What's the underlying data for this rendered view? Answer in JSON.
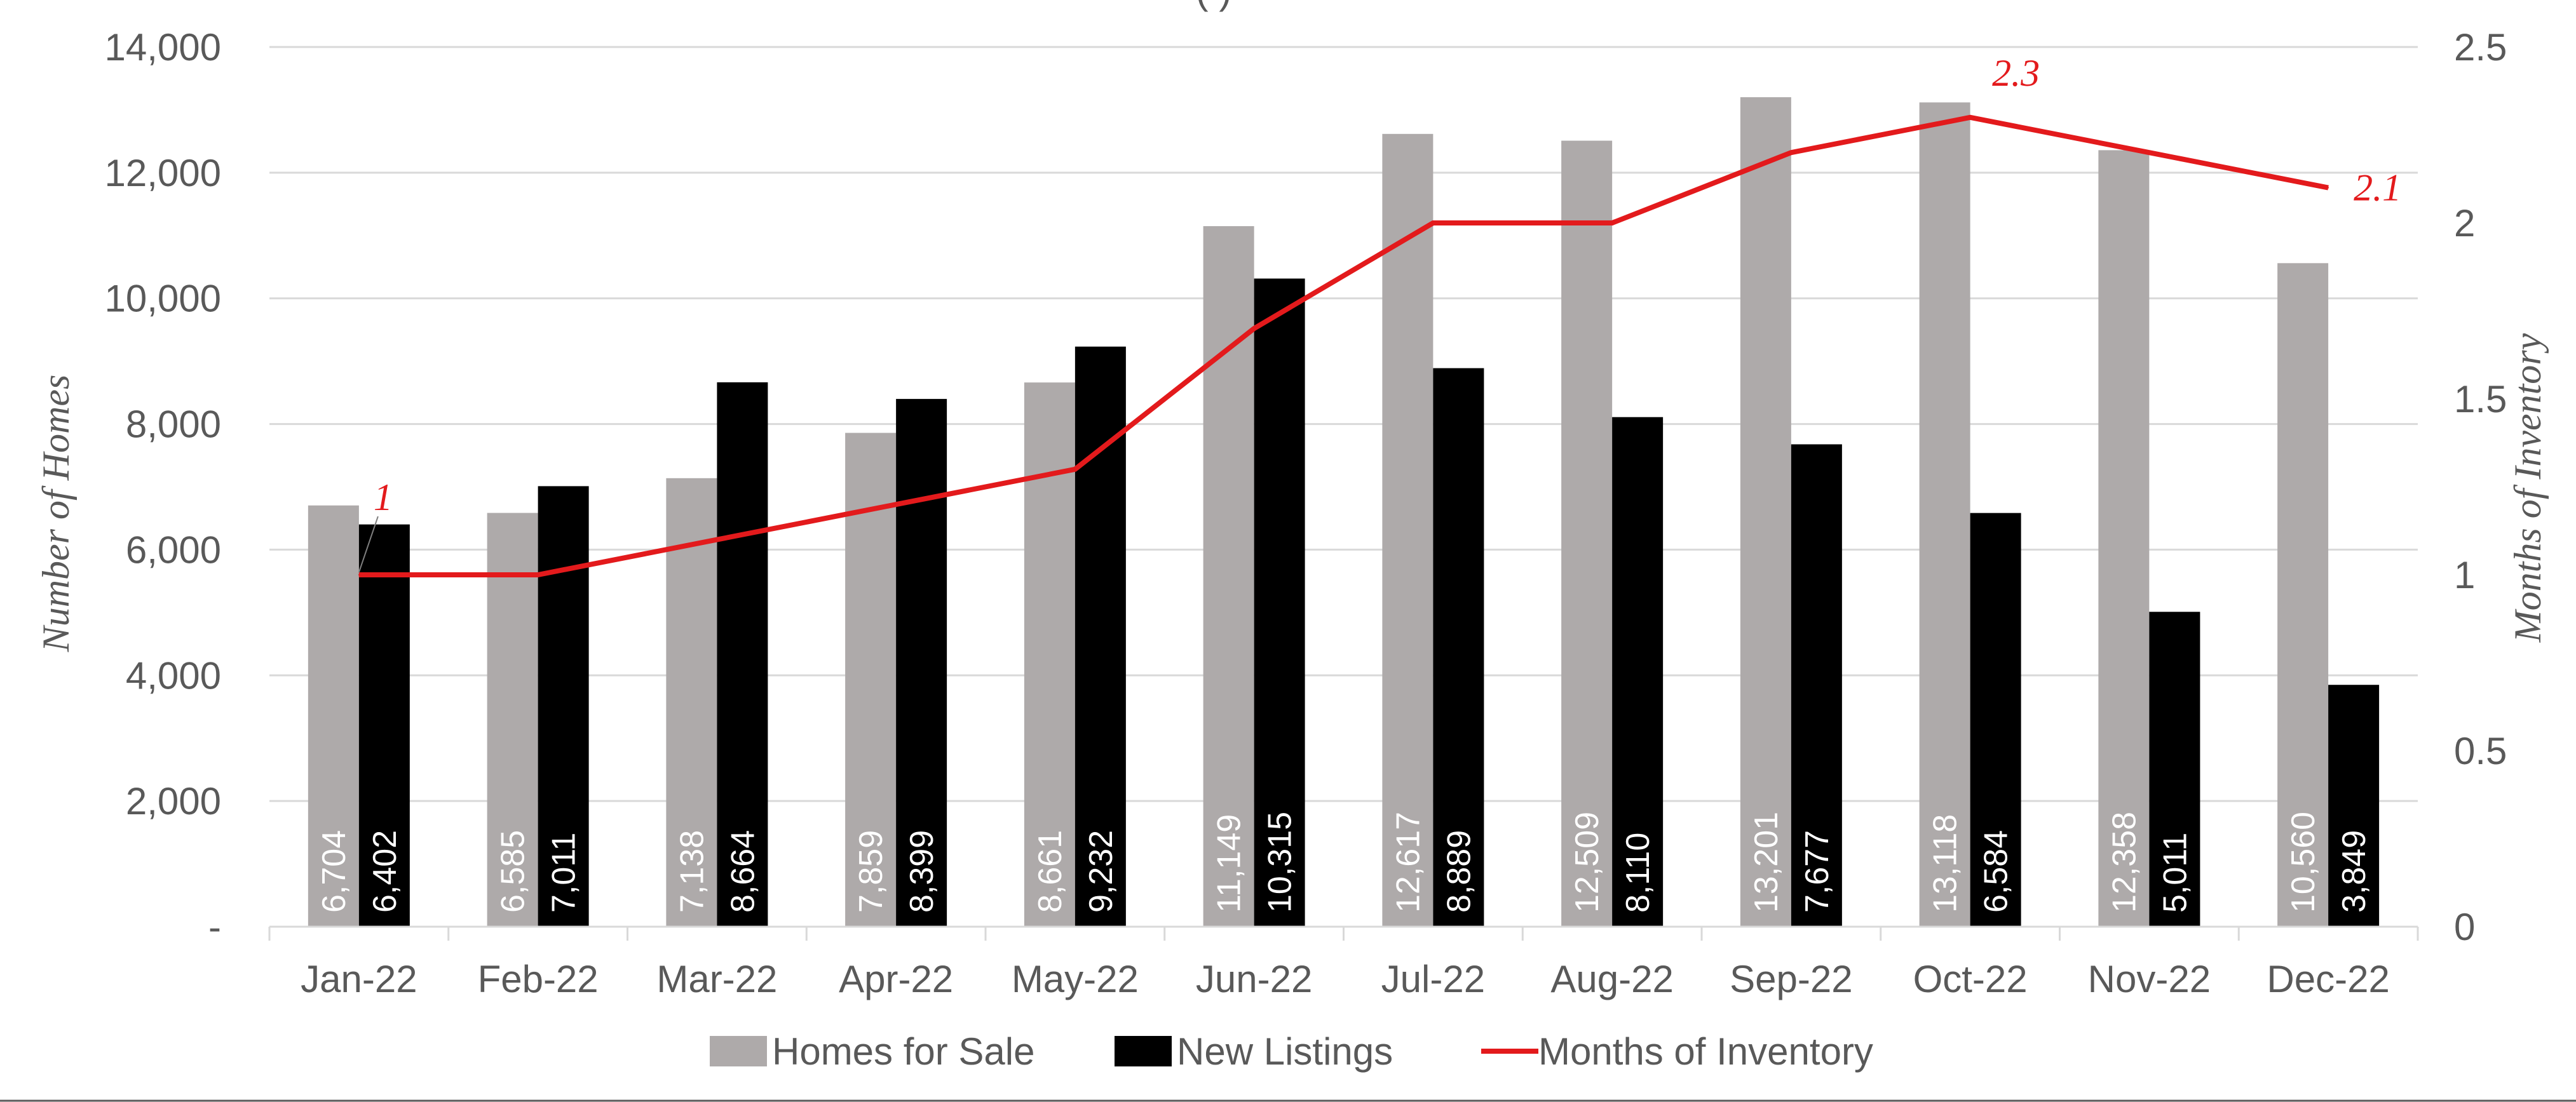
{
  "chart_data": {
    "type": "bar",
    "title_partial": "(                         )",
    "categories": [
      "Jan-22",
      "Feb-22",
      "Mar-22",
      "Apr-22",
      "May-22",
      "Jun-22",
      "Jul-22",
      "Aug-22",
      "Sep-22",
      "Oct-22",
      "Nov-22",
      "Dec-22"
    ],
    "series": [
      {
        "name": "Homes for Sale",
        "type": "bar",
        "axis": "left",
        "color": "#aeaaaa",
        "values": [
          6704,
          6585,
          7138,
          7859,
          8661,
          11149,
          12617,
          12509,
          13201,
          13118,
          12358,
          10560
        ],
        "labels": [
          "6,704",
          "6,585",
          "7,138",
          "7,859",
          "8,661",
          "11,149",
          "12,617",
          "12,509",
          "13,201",
          "13,118",
          "12,358",
          "10,560"
        ]
      },
      {
        "name": "New Listings",
        "type": "bar",
        "axis": "left",
        "color": "#000000",
        "values": [
          6402,
          7011,
          8664,
          8399,
          9232,
          10315,
          8889,
          8110,
          7677,
          6584,
          5011,
          3849
        ],
        "labels": [
          "6,402",
          "7,011",
          "8,664",
          "8,399",
          "9,232",
          "10,315",
          "8,889",
          "8,110",
          "7,677",
          "6,584",
          "5,011",
          "3,849"
        ]
      },
      {
        "name": "Months of Inventory",
        "type": "line",
        "axis": "right",
        "color": "#e31a1c",
        "values": [
          1,
          1,
          1.1,
          1.2,
          1.3,
          1.7,
          2,
          2,
          2.2,
          2.3,
          2.2,
          2.1
        ],
        "point_labels": [
          {
            "index": 0,
            "text": "1"
          },
          {
            "index": 9,
            "text": "2.3"
          },
          {
            "index": 11,
            "text": "2.1"
          }
        ]
      }
    ],
    "y_left": {
      "label": "Number of Homes",
      "min": 0,
      "max": 14000,
      "ticks": [
        "-",
        "2,000",
        "4,000",
        "6,000",
        "8,000",
        "10,000",
        "12,000",
        "14,000"
      ]
    },
    "y_right": {
      "label": "Months of Inventory",
      "min": 0,
      "max": 2.5,
      "ticks": [
        "0",
        "0.5",
        "1",
        "1.5",
        "2",
        "2.5"
      ]
    },
    "grid": true,
    "legend_position": "bottom",
    "legend": [
      "Homes for Sale",
      "New Listings",
      "Months of Inventory"
    ]
  }
}
